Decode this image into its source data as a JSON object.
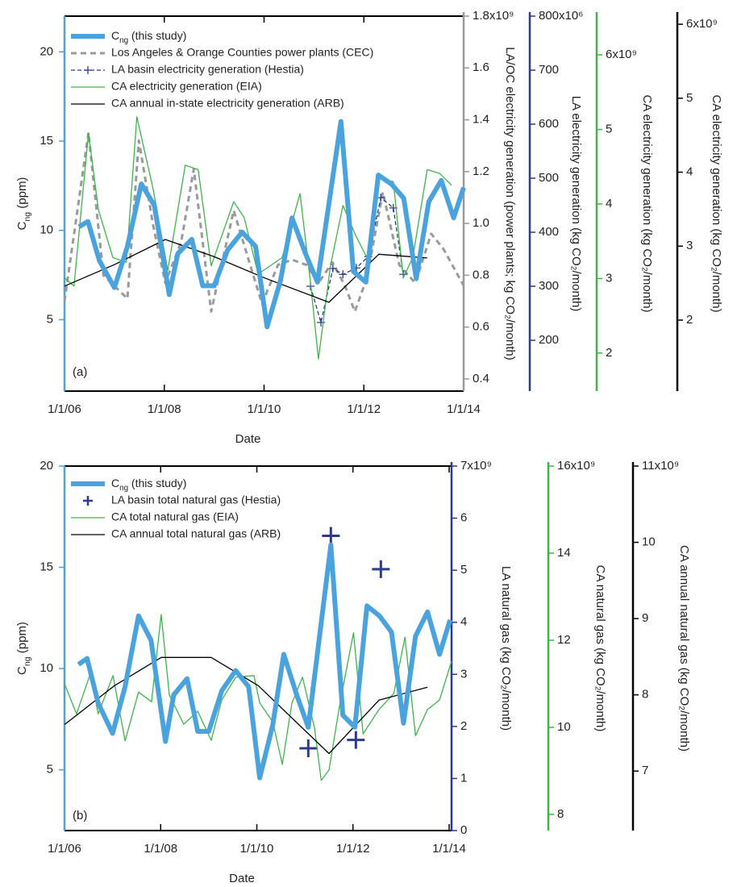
{
  "chart_data": [
    {
      "type": "line",
      "panel_label": "(a)",
      "xlabel": "Date",
      "xlim": [
        2006,
        2014
      ],
      "xticks": [
        {
          "value": 2006,
          "label": "1/1/06"
        },
        {
          "value": 2008,
          "label": "1/1/08"
        },
        {
          "value": 2010,
          "label": "1/1/10"
        },
        {
          "value": 2012,
          "label": "1/1/12"
        },
        {
          "value": 2014,
          "label": "1/1/14"
        }
      ],
      "series": [
        {
          "name": [
            "C",
            "ng",
            " (this study)"
          ],
          "color": "#4aa3dc",
          "ylabel": [
            "C",
            "ng",
            " (ppm)"
          ],
          "ylim": [
            1,
            22
          ],
          "yticks": [
            5,
            10,
            15,
            20
          ],
          "x": [
            2006.29,
            2006.47,
            2006.7,
            2007.0,
            2007.26,
            2007.54,
            2007.8,
            2008.1,
            2008.27,
            2008.55,
            2008.77,
            2009.0,
            2009.27,
            2009.56,
            2009.83,
            2010.06,
            2010.33,
            2010.56,
            2010.83,
            2011.07,
            2011.54,
            2011.79,
            2012.04,
            2012.29,
            2012.55,
            2012.8,
            2013.05,
            2013.3,
            2013.55,
            2013.8,
            2014.0
          ],
          "values": [
            10.2,
            10.5,
            8.3,
            6.8,
            9.1,
            12.6,
            11.4,
            6.4,
            8.7,
            9.5,
            6.9,
            6.9,
            8.9,
            9.9,
            9.1,
            4.6,
            7.2,
            10.7,
            8.7,
            7.1,
            16.1,
            7.7,
            7.1,
            13.1,
            12.6,
            11.8,
            7.3,
            11.6,
            12.8,
            10.7,
            12.4
          ]
        },
        {
          "name": "Los Angeles & Orange Counties power plants (CEC)",
          "color": "#9a9a9a",
          "dash": "dashed",
          "ylabel": "LA/OC electricity generation (power plants; kg CO₂/month)",
          "ylim": [
            353000000.0,
            1800000000.0
          ],
          "yticks": [
            {
              "value": 400000000.0,
              "label": "0.4"
            },
            {
              "value": 600000000.0,
              "label": "0.6"
            },
            {
              "value": 800000000.0,
              "label": "0.8"
            },
            {
              "value": 1000000000.0,
              "label": "1.0"
            },
            {
              "value": 1200000000.0,
              "label": "1.2"
            },
            {
              "value": 1400000000.0,
              "label": "1.4"
            },
            {
              "value": 1600000000.0,
              "label": "1.6"
            },
            {
              "value": 1800000000.0,
              "label": "1.8x10⁹"
            }
          ],
          "x": [
            2006.0,
            2006.48,
            2006.78,
            2007.26,
            2007.49,
            2007.78,
            2008.02,
            2008.34,
            2008.59,
            2008.94,
            2009.39,
            2009.72,
            2009.96,
            2010.28,
            2010.56,
            2010.85,
            2011.09,
            2011.37,
            2011.62,
            2011.82,
            2012.06,
            2012.38,
            2012.71,
            2013.03,
            2013.35,
            2013.6,
            2014.0
          ],
          "values": [
            700000000.0,
            1350000000.0,
            800000000.0,
            710000000.0,
            1320000000.0,
            990000000.0,
            770000000.0,
            930000000.0,
            1210000000.0,
            660000000.0,
            1050000000.0,
            840000000.0,
            690000000.0,
            840000000.0,
            860000000.0,
            840000000.0,
            770000000.0,
            850000000.0,
            760000000.0,
            660000000.0,
            790000000.0,
            1120000000.0,
            840000000.0,
            770000000.0,
            960000000.0,
            900000000.0,
            760000000.0
          ]
        },
        {
          "name": "LA basin electricity generation (Hestia)",
          "color": "#2c3b8f",
          "dash": "dashed",
          "marker": "plus",
          "ylabel": "LA electricity generation (kg CO₂/month)",
          "ylim": [
            106000000.0,
            800000000.0
          ],
          "yticks": [
            {
              "value": 200000000.0,
              "label": "200"
            },
            {
              "value": 300000000.0,
              "label": "300"
            },
            {
              "value": 400000000.0,
              "label": "400"
            },
            {
              "value": 500000000.0,
              "label": "500"
            },
            {
              "value": 600000000.0,
              "label": "600"
            },
            {
              "value": 700000000.0,
              "label": "700"
            },
            {
              "value": 800000000.0,
              "label": "800x10⁶"
            }
          ],
          "x": [
            2010.93,
            2011.14,
            2011.38,
            2011.58,
            2011.85,
            2012.09,
            2012.34,
            2012.59,
            2012.79
          ],
          "values": [
            300000000.0,
            233000000.0,
            333000000.0,
            322000000.0,
            334000000.0,
            355000000.0,
            464000000.0,
            445000000.0,
            322000000.0
          ]
        },
        {
          "name": "CA electricity generation (EIA)",
          "color": "#3db54a",
          "ylabel": "CA electricity generation (kg CO₂/month)",
          "ylim": [
            1490000000.0,
            6520000000.0
          ],
          "yticks": [
            {
              "value": 2000000000.0,
              "label": "2"
            },
            {
              "value": 3000000000.0,
              "label": "3"
            },
            {
              "value": 4000000000.0,
              "label": "4"
            },
            {
              "value": 5000000000.0,
              "label": "5"
            },
            {
              "value": 6000000000.0,
              "label": "6x10⁹"
            }
          ],
          "x": [
            2006.0,
            2006.19,
            2006.48,
            2006.68,
            2006.97,
            2007.24,
            2007.45,
            2007.78,
            2008.07,
            2008.42,
            2008.68,
            2008.94,
            2009.39,
            2009.6,
            2009.88,
            2010.36,
            2010.72,
            2010.93,
            2011.09,
            2011.33,
            2011.58,
            2011.82,
            2012.06,
            2012.3,
            2012.59,
            2012.79,
            2012.98,
            2013.27,
            2013.52,
            2013.76
          ],
          "values": [
            3010000000.0,
            2900000000.0,
            4950000000.0,
            3920000000.0,
            3280000000.0,
            3220000000.0,
            5170000000.0,
            4190000000.0,
            3110000000.0,
            4520000000.0,
            4460000000.0,
            3170000000.0,
            4030000000.0,
            3820000000.0,
            3060000000.0,
            3280000000.0,
            4140000000.0,
            2950000000.0,
            1920000000.0,
            3170000000.0,
            3980000000.0,
            3600000000.0,
            3280000000.0,
            4340000000.0,
            4300000000.0,
            3010000000.0,
            3280000000.0,
            4460000000.0,
            4410000000.0,
            4250000000.0
          ]
        },
        {
          "name": "CA annual in-state electricity generation (ARB)",
          "color": "#000000",
          "ylabel": "CA electricity generation (kg CO₂/month)",
          "ylim": [
            1040000000.0,
            6110000000.0
          ],
          "yticks": [
            {
              "value": 2000000000.0,
              "label": "2"
            },
            {
              "value": 3000000000.0,
              "label": "3"
            },
            {
              "value": 4000000000.0,
              "label": "4"
            },
            {
              "value": 5000000000.0,
              "label": "5"
            },
            {
              "value": 6000000000.0,
              "label": "6x10⁹"
            }
          ],
          "x": [
            2006.0,
            2007.0,
            2008.02,
            2008.99,
            2010.01,
            2011.3,
            2012.3,
            2013.27
          ],
          "values": [
            2460000000.0,
            2750000000.0,
            3090000000.0,
            2860000000.0,
            2570000000.0,
            2240000000.0,
            2890000000.0,
            2840000000.0
          ]
        }
      ]
    },
    {
      "type": "line",
      "panel_label": "(b)",
      "xlabel": "Date",
      "xlim": [
        2006,
        2014.05
      ],
      "xticks": [
        {
          "value": 2006,
          "label": "1/1/06"
        },
        {
          "value": 2008,
          "label": "1/1/08"
        },
        {
          "value": 2010,
          "label": "1/1/10"
        },
        {
          "value": 2012,
          "label": "1/1/12"
        },
        {
          "value": 2014,
          "label": "1/1/14"
        }
      ],
      "series": [
        {
          "name": [
            "C",
            "ng",
            " (this study)"
          ],
          "color": "#4aa3dc",
          "ylabel": [
            "C",
            "ng",
            " (ppm)"
          ],
          "ylim": [
            2,
            20
          ],
          "yticks": [
            5,
            10,
            15,
            20
          ],
          "x": [
            2006.29,
            2006.47,
            2006.7,
            2007.0,
            2007.26,
            2007.54,
            2007.8,
            2008.1,
            2008.27,
            2008.55,
            2008.77,
            2009.0,
            2009.27,
            2009.56,
            2009.83,
            2010.06,
            2010.33,
            2010.56,
            2010.83,
            2011.07,
            2011.54,
            2011.79,
            2012.04,
            2012.29,
            2012.55,
            2012.8,
            2013.05,
            2013.3,
            2013.55,
            2013.8,
            2014.02
          ],
          "values": [
            10.2,
            10.5,
            8.3,
            6.8,
            9.1,
            12.6,
            11.4,
            6.4,
            8.7,
            9.5,
            6.9,
            6.9,
            8.9,
            9.9,
            9.1,
            4.6,
            7.2,
            10.7,
            8.7,
            7.1,
            16.1,
            7.7,
            7.1,
            13.1,
            12.6,
            11.8,
            7.3,
            11.6,
            12.8,
            10.7,
            12.4
          ]
        },
        {
          "name": "LA basin total natural gas (Hestia)",
          "color": "#2c3b8f",
          "marker": "plus",
          "line": false,
          "ylabel": "LA natural gas (kg CO₂/month)",
          "ylim": [
            0,
            7000000000.0
          ],
          "yticks": [
            {
              "value": 0,
              "label": "0"
            },
            {
              "value": 1000000000.0,
              "label": "1"
            },
            {
              "value": 2000000000.0,
              "label": "2"
            },
            {
              "value": 3000000000.0,
              "label": "3"
            },
            {
              "value": 4000000000.0,
              "label": "4"
            },
            {
              "value": 5000000000.0,
              "label": "5"
            },
            {
              "value": 6000000000.0,
              "label": "6"
            },
            {
              "value": 7000000000.0,
              "label": "7x10⁹"
            }
          ],
          "x": [
            2011.07,
            2011.54,
            2012.06,
            2012.58
          ],
          "values": [
            1580000000.0,
            5660000000.0,
            1740000000.0,
            5020000000.0
          ]
        },
        {
          "name": "CA total natural gas (EIA)",
          "color": "#3db54a",
          "ylabel": "CA natural gas (kg CO₂/month)",
          "ylim": [
            7630000000.0,
            16000000000.0
          ],
          "yticks": [
            {
              "value": 8000000000.0,
              "label": "8"
            },
            {
              "value": 10000000000.0,
              "label": "10"
            },
            {
              "value": 12000000000.0,
              "label": "12"
            },
            {
              "value": 14000000000.0,
              "label": "14"
            },
            {
              "value": 16000000000.0,
              "label": "16x10⁹"
            }
          ],
          "x": [
            2006.0,
            2006.25,
            2006.54,
            2006.7,
            2007.01,
            2007.26,
            2007.54,
            2007.81,
            2008.01,
            2008.18,
            2008.48,
            2008.77,
            2009.05,
            2009.27,
            2009.56,
            2009.94,
            2010.06,
            2010.33,
            2010.53,
            2010.73,
            2010.95,
            2011.2,
            2011.34,
            2011.5,
            2011.74,
            2012.01,
            2012.21,
            2012.54,
            2012.85,
            2013.08,
            2013.3,
            2013.55,
            2013.8,
            2014.05
          ],
          "values": [
            11000000000.0,
            10310000000.0,
            11240000000.0,
            10310000000.0,
            11190000000.0,
            9690000000.0,
            10810000000.0,
            10590000000.0,
            12590000000.0,
            10740000000.0,
            10070000000.0,
            10370000000.0,
            9700000000.0,
            10630000000.0,
            11150000000.0,
            11190000000.0,
            10560000000.0,
            10130000000.0,
            9150000000.0,
            10560000000.0,
            11150000000.0,
            9980000000.0,
            8780000000.0,
            9020000000.0,
            10630000000.0,
            12170000000.0,
            9850000000.0,
            10410000000.0,
            10780000000.0,
            12070000000.0,
            9810000000.0,
            10410000000.0,
            10630000000.0,
            11520000000.0
          ]
        },
        {
          "name": "CA annual total natural gas (ARB)",
          "color": "#000000",
          "ylabel": "CA annual natural gas (kg CO₂/month)",
          "ylim": [
            6220000000.0,
            11000000000.0
          ],
          "yticks": [
            {
              "value": 7000000000.0,
              "label": "7"
            },
            {
              "value": 8000000000.0,
              "label": "8"
            },
            {
              "value": 9000000000.0,
              "label": "9"
            },
            {
              "value": 10000000000.0,
              "label": "10"
            },
            {
              "value": 11000000000.0,
              "label": "11x10⁹"
            }
          ],
          "x": [
            2006.0,
            2007.04,
            2008.01,
            2009.05,
            2010.03,
            2011.5,
            2012.54,
            2013.55
          ],
          "values": [
            7610000000.0,
            8120000000.0,
            8490000000.0,
            8490000000.0,
            8120000000.0,
            7230000000.0,
            7930000000.0,
            8100000000.0
          ]
        }
      ]
    }
  ]
}
